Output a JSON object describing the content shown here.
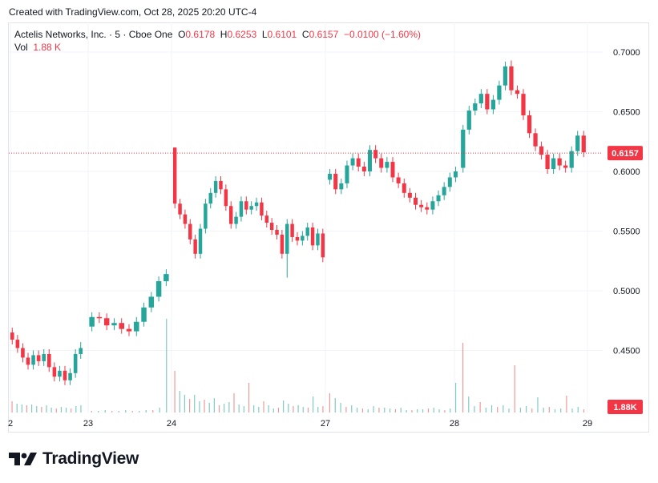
{
  "header": {
    "created_text": "Created with TradingView.com, Oct 28, 2025 20:20 UTC-4"
  },
  "legend": {
    "symbol": "Actelis Networks, Inc. · 5 · Cboe One",
    "open_label": "O",
    "open_value": "0.6178",
    "high_label": "H",
    "high_value": "0.6253",
    "low_label": "L",
    "low_value": "0.6101",
    "close_label": "C",
    "close_value": "0.6157",
    "change": "−0.0100 (−1.60%)",
    "vol_label": "Vol",
    "vol_value": "1.88 K"
  },
  "logo": {
    "text": "TradingView"
  },
  "colors": {
    "up": "#26a69a",
    "down": "#f23645",
    "grid": "#f0f3fa",
    "axis_text": "#131722"
  },
  "chart_data": {
    "type": "candlestick",
    "y_axis": {
      "ticks": [
        "0.7000",
        "0.6500",
        "0.6000",
        "0.5500",
        "0.5000",
        "0.4500"
      ],
      "range": [
        0.4,
        0.73
      ]
    },
    "x_axis": {
      "ticks": [
        "2",
        "23",
        "24",
        "27",
        "28",
        "29"
      ]
    },
    "last_price_label": "0.6157",
    "volume_label": "1.88K",
    "segments": [
      {
        "path": [
          0.465,
          0.459,
          0.452,
          0.444,
          0.438,
          0.446,
          0.441,
          0.447,
          0.436,
          0.428,
          0.433,
          0.425,
          0.431,
          0.447,
          0.452
        ],
        "spike_index": 13
      },
      {
        "path": [
          0.47,
          0.478,
          0.477,
          0.471,
          0.473,
          0.468,
          0.466,
          0.474,
          0.486,
          0.495,
          0.508,
          0.514
        ]
      },
      {
        "path": [
          0.62,
          0.573,
          0.564,
          0.556,
          0.543,
          0.531,
          0.552,
          0.573,
          0.582,
          0.592,
          0.585,
          0.571,
          0.556,
          0.562,
          0.575,
          0.568,
          0.571,
          0.574,
          0.563,
          0.557,
          0.551,
          0.547,
          0.531,
          0.556,
          0.545,
          0.542,
          0.546,
          0.553,
          0.538,
          0.548,
          0.528
        ],
        "spike_index": 0,
        "dip_index": 22
      },
      {
        "path": [
          0.593,
          0.598,
          0.585,
          0.59,
          0.605,
          0.611,
          0.604,
          0.6,
          0.618,
          0.611,
          0.603,
          0.608,
          0.595,
          0.59,
          0.582,
          0.578,
          0.572,
          0.57,
          0.568,
          0.575,
          0.58,
          0.587,
          0.595,
          0.6
        ]
      },
      {
        "path": [
          0.603,
          0.635,
          0.651,
          0.657,
          0.665,
          0.652,
          0.66,
          0.672,
          0.688,
          0.668,
          0.665,
          0.647,
          0.632,
          0.621,
          0.614,
          0.602,
          0.611,
          0.605,
          0.603,
          0.617,
          0.63,
          0.616
        ],
        "spike_index": 8
      }
    ],
    "volume": [
      {
        "group": 0,
        "values": [
          14,
          11,
          10,
          9,
          10,
          8,
          7,
          9,
          6,
          5,
          7,
          6,
          5,
          8,
          9
        ]
      },
      {
        "group": 1,
        "values": [
          2,
          2,
          3,
          2,
          2,
          3,
          2,
          2,
          3,
          3,
          6,
          117
        ]
      },
      {
        "group": 2,
        "values": [
          52,
          27,
          22,
          17,
          22,
          14,
          16,
          12,
          18,
          9,
          11,
          13,
          24,
          10,
          8,
          37,
          9,
          7,
          14,
          9,
          5,
          6,
          15,
          11,
          8,
          9,
          7,
          6,
          20,
          7,
          8
        ]
      },
      {
        "group": 3,
        "values": [
          24,
          18,
          12,
          7,
          9,
          6,
          5,
          4,
          8,
          6,
          6,
          5,
          4,
          6,
          3,
          3,
          4,
          4,
          5,
          6,
          4,
          3,
          5,
          37
        ]
      },
      {
        "group": 4,
        "values": [
          87,
          20,
          8,
          13,
          6,
          9,
          7,
          9,
          5,
          59,
          6,
          8,
          5,
          19,
          6,
          7,
          4,
          5,
          21,
          5,
          7,
          4
        ]
      }
    ]
  }
}
